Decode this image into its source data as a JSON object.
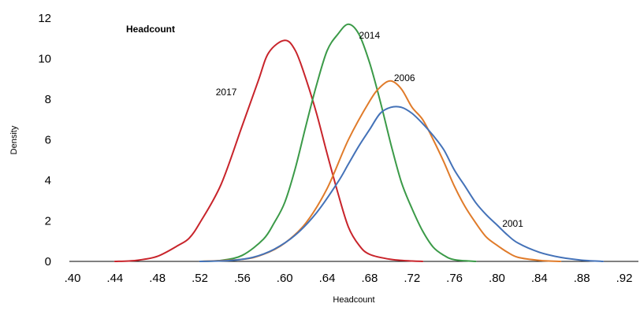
{
  "chart_data": {
    "type": "line",
    "title": "Headcount",
    "xlabel": "Headcount",
    "ylabel": "Density",
    "xlim": [
      0.4,
      0.92
    ],
    "ylim": [
      0,
      12
    ],
    "x_ticks": [
      0.4,
      0.44,
      0.48,
      0.52,
      0.56,
      0.6,
      0.64,
      0.68,
      0.72,
      0.76,
      0.8,
      0.84,
      0.88,
      0.92
    ],
    "x_tick_labels": [
      ".40",
      ".44",
      ".48",
      ".52",
      ".56",
      ".60",
      ".64",
      ".68",
      ".72",
      ".76",
      ".80",
      ".84",
      ".88",
      ".92"
    ],
    "y_ticks": [
      0,
      2,
      4,
      6,
      8,
      10,
      12
    ],
    "y_tick_labels": [
      "0",
      "2",
      "4",
      "6",
      "8",
      "10",
      "12"
    ],
    "grid": false,
    "series": [
      {
        "name": "2017",
        "color": "#c8242b",
        "points": [
          [
            0.44,
            0.0
          ],
          [
            0.46,
            0.05
          ],
          [
            0.48,
            0.25
          ],
          [
            0.5,
            0.8
          ],
          [
            0.51,
            1.15
          ],
          [
            0.52,
            1.9
          ],
          [
            0.54,
            3.8
          ],
          [
            0.56,
            6.7
          ],
          [
            0.575,
            8.9
          ],
          [
            0.585,
            10.3
          ],
          [
            0.6,
            10.9
          ],
          [
            0.61,
            10.4
          ],
          [
            0.62,
            9.0
          ],
          [
            0.63,
            7.3
          ],
          [
            0.64,
            5.3
          ],
          [
            0.65,
            3.4
          ],
          [
            0.66,
            1.7
          ],
          [
            0.67,
            0.8
          ],
          [
            0.68,
            0.35
          ],
          [
            0.7,
            0.1
          ],
          [
            0.72,
            0.02
          ],
          [
            0.73,
            0.0
          ]
        ]
      },
      {
        "name": "2014",
        "color": "#3b9a48",
        "points": [
          [
            0.52,
            0.0
          ],
          [
            0.54,
            0.05
          ],
          [
            0.56,
            0.3
          ],
          [
            0.58,
            1.1
          ],
          [
            0.59,
            1.9
          ],
          [
            0.6,
            2.9
          ],
          [
            0.61,
            4.6
          ],
          [
            0.62,
            6.7
          ],
          [
            0.63,
            8.7
          ],
          [
            0.64,
            10.4
          ],
          [
            0.65,
            11.2
          ],
          [
            0.66,
            11.7
          ],
          [
            0.67,
            11.2
          ],
          [
            0.68,
            9.8
          ],
          [
            0.69,
            7.9
          ],
          [
            0.7,
            5.8
          ],
          [
            0.71,
            3.9
          ],
          [
            0.72,
            2.6
          ],
          [
            0.73,
            1.5
          ],
          [
            0.74,
            0.7
          ],
          [
            0.75,
            0.3
          ],
          [
            0.76,
            0.08
          ],
          [
            0.78,
            0.0
          ]
        ]
      },
      {
        "name": "2006",
        "color": "#e07b2a",
        "points": [
          [
            0.52,
            0.0
          ],
          [
            0.56,
            0.1
          ],
          [
            0.58,
            0.35
          ],
          [
            0.6,
            0.9
          ],
          [
            0.62,
            1.9
          ],
          [
            0.64,
            3.6
          ],
          [
            0.66,
            6.0
          ],
          [
            0.68,
            7.9
          ],
          [
            0.69,
            8.6
          ],
          [
            0.7,
            8.9
          ],
          [
            0.71,
            8.5
          ],
          [
            0.72,
            7.6
          ],
          [
            0.73,
            7.0
          ],
          [
            0.74,
            6.0
          ],
          [
            0.75,
            4.9
          ],
          [
            0.76,
            3.7
          ],
          [
            0.77,
            2.7
          ],
          [
            0.78,
            1.9
          ],
          [
            0.79,
            1.2
          ],
          [
            0.8,
            0.8
          ],
          [
            0.81,
            0.45
          ],
          [
            0.82,
            0.2
          ],
          [
            0.84,
            0.05
          ],
          [
            0.86,
            0.0
          ]
        ]
      },
      {
        "name": "2001",
        "color": "#4472b8",
        "points": [
          [
            0.52,
            0.0
          ],
          [
            0.55,
            0.05
          ],
          [
            0.57,
            0.2
          ],
          [
            0.59,
            0.6
          ],
          [
            0.61,
            1.3
          ],
          [
            0.63,
            2.4
          ],
          [
            0.65,
            3.9
          ],
          [
            0.66,
            4.8
          ],
          [
            0.67,
            5.7
          ],
          [
            0.68,
            6.5
          ],
          [
            0.69,
            7.3
          ],
          [
            0.7,
            7.6
          ],
          [
            0.71,
            7.6
          ],
          [
            0.72,
            7.3
          ],
          [
            0.73,
            6.8
          ],
          [
            0.74,
            6.2
          ],
          [
            0.75,
            5.5
          ],
          [
            0.76,
            4.5
          ],
          [
            0.77,
            3.7
          ],
          [
            0.78,
            2.9
          ],
          [
            0.79,
            2.3
          ],
          [
            0.8,
            1.8
          ],
          [
            0.81,
            1.3
          ],
          [
            0.82,
            0.9
          ],
          [
            0.84,
            0.45
          ],
          [
            0.86,
            0.2
          ],
          [
            0.88,
            0.06
          ],
          [
            0.9,
            0.0
          ]
        ]
      }
    ],
    "annotations": [
      {
        "text": "2017",
        "x": 0.535,
        "y": 8.2
      },
      {
        "text": "2014",
        "x": 0.67,
        "y": 11.0
      },
      {
        "text": "2006",
        "x": 0.703,
        "y": 8.9
      },
      {
        "text": "2001",
        "x": 0.805,
        "y": 1.7
      }
    ]
  }
}
